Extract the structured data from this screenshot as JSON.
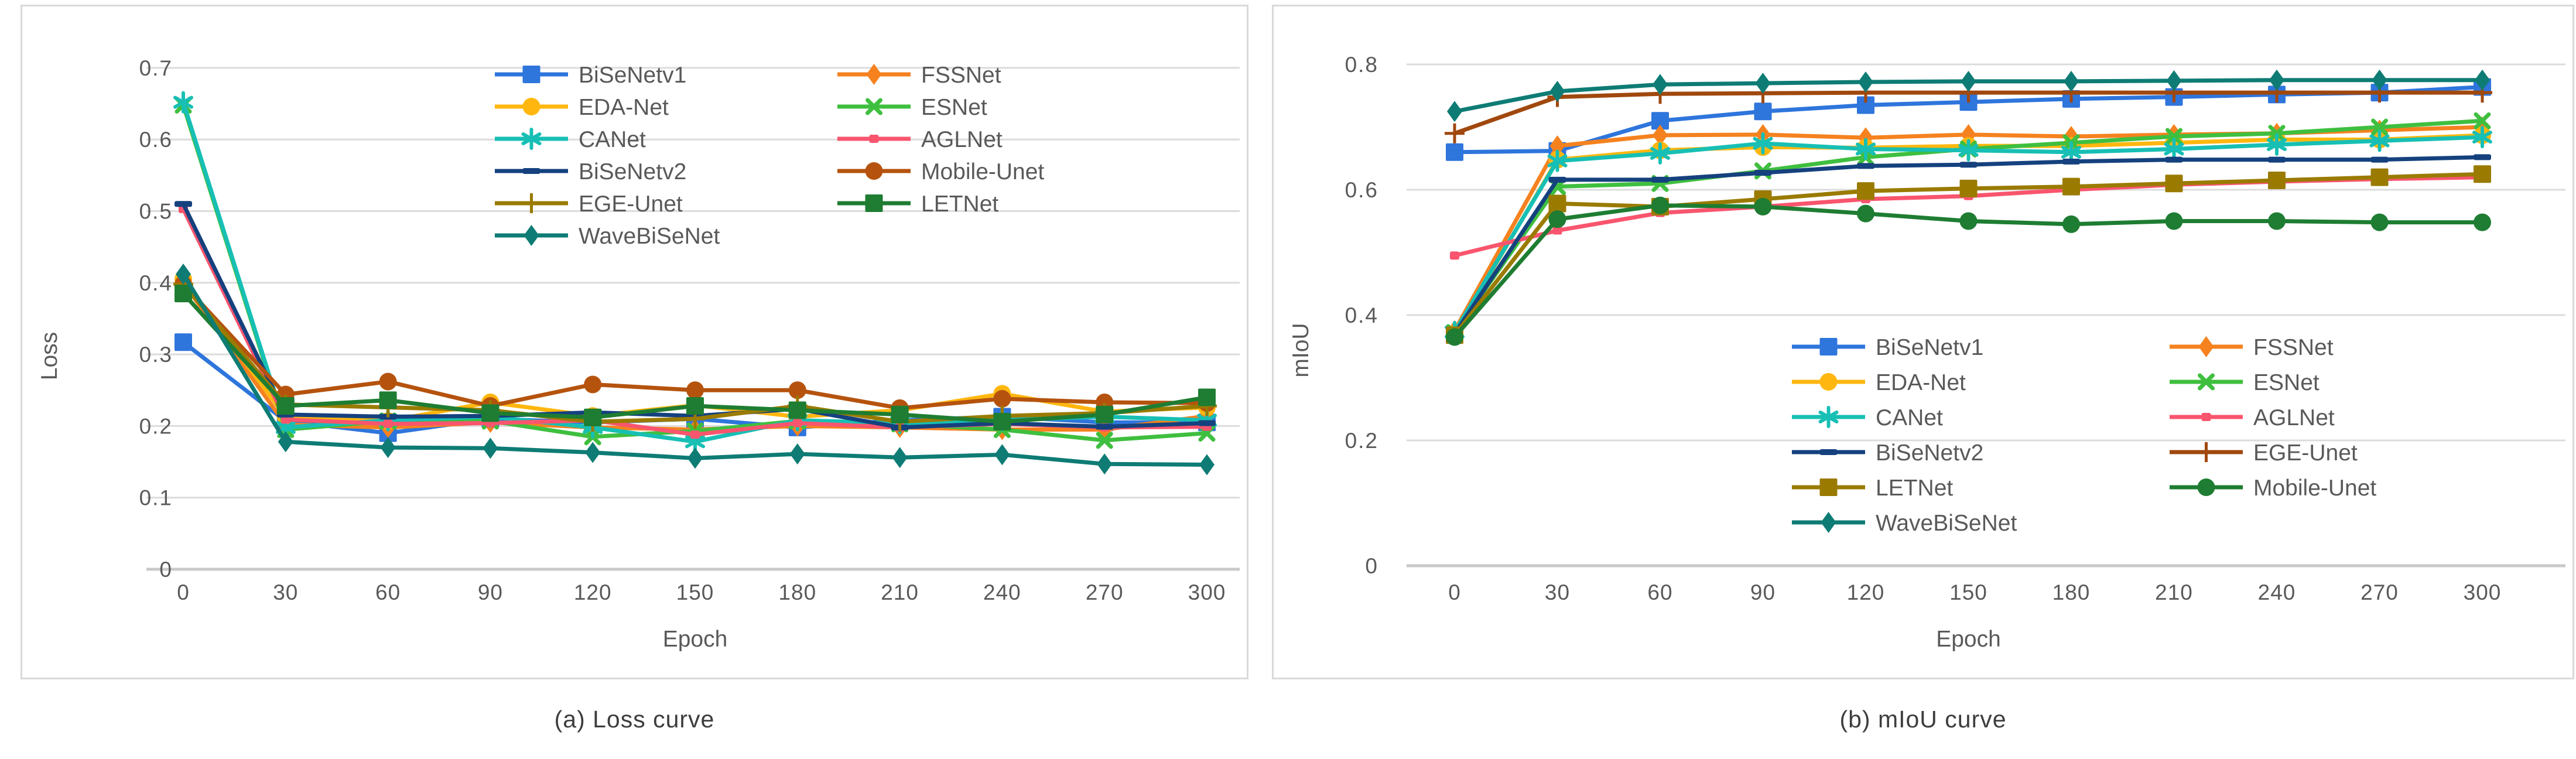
{
  "figure": {
    "background": "#ffffff",
    "text_color": "#595959",
    "grid_color": "#dcdcdc",
    "axis_line_color": "#c8c8c8",
    "panel_border_color": "#d9d9d9"
  },
  "chart_data": [
    {
      "id": "loss",
      "type": "line",
      "caption": "(a) Loss curve",
      "xlabel": "Epoch",
      "ylabel": "Loss",
      "x": [
        0,
        30,
        60,
        90,
        120,
        150,
        180,
        210,
        240,
        270,
        300
      ],
      "x_tick_labels": [
        "0",
        "30",
        "60",
        "90",
        "120",
        "150",
        "180",
        "210",
        "240",
        "270",
        "300"
      ],
      "y_ticks": [
        0,
        0.1,
        0.2,
        0.3,
        0.4,
        0.5,
        0.6,
        0.7
      ],
      "y_tick_labels": [
        "0",
        "0.1",
        "0.2",
        "0.3",
        "0.4",
        "0.5",
        "0.6",
        "0.7"
      ],
      "ylim": [
        0,
        0.7
      ],
      "grid": true,
      "legend_position": "top-center-inside",
      "legend_columns": [
        [
          "BiSeNetv1",
          "EDA-Net",
          "CANet",
          "BiSeNetv2",
          "EGE-Unet",
          "WaveBiSeNet"
        ],
        [
          "FSSNet",
          "ESNet",
          "AGLNet",
          "Mobile-Unet",
          "LETNet"
        ]
      ],
      "series": [
        {
          "name": "BiSeNetv1",
          "color": "#2e75dc",
          "marker": "square",
          "values": [
            0.317,
            0.207,
            0.19,
            0.21,
            0.205,
            0.21,
            0.198,
            0.208,
            0.213,
            0.205,
            0.205
          ]
        },
        {
          "name": "FSSNet",
          "color": "#f5821f",
          "marker": "diamond",
          "values": [
            0.4,
            0.202,
            0.198,
            0.205,
            0.198,
            0.195,
            0.2,
            0.198,
            0.195,
            0.195,
            0.214
          ]
        },
        {
          "name": "EDA-Net",
          "color": "#ffb70f",
          "marker": "circle",
          "values": [
            0.405,
            0.213,
            0.207,
            0.233,
            0.214,
            0.229,
            0.213,
            0.222,
            0.245,
            0.22,
            0.226
          ]
        },
        {
          "name": "ESNet",
          "color": "#3fbf3f",
          "marker": "x",
          "values": [
            0.648,
            0.195,
            0.207,
            0.207,
            0.185,
            0.193,
            0.207,
            0.203,
            0.195,
            0.18,
            0.19
          ]
        },
        {
          "name": "CANet",
          "color": "#17bfb4",
          "marker": "asterisk",
          "values": [
            0.652,
            0.198,
            0.208,
            0.213,
            0.198,
            0.178,
            0.208,
            0.204,
            0.208,
            0.213,
            0.208
          ]
        },
        {
          "name": "AGLNet",
          "color": "#f9556e",
          "marker": "small-square",
          "values": [
            0.503,
            0.209,
            0.203,
            0.204,
            0.208,
            0.188,
            0.204,
            0.198,
            0.203,
            0.198,
            0.199
          ]
        },
        {
          "name": "BiSeNetv2",
          "color": "#15417e",
          "marker": "dash",
          "values": [
            0.51,
            0.216,
            0.213,
            0.214,
            0.219,
            0.214,
            0.224,
            0.198,
            0.204,
            0.199,
            0.204
          ]
        },
        {
          "name": "Mobile-Unet",
          "color": "#b5530e",
          "marker": "circle",
          "values": [
            0.398,
            0.244,
            0.262,
            0.228,
            0.258,
            0.25,
            0.25,
            0.225,
            0.238,
            0.233,
            0.232
          ]
        },
        {
          "name": "EGE-Unet",
          "color": "#9a7b00",
          "marker": "plus",
          "values": [
            0.398,
            0.23,
            0.226,
            0.222,
            0.206,
            0.21,
            0.228,
            0.206,
            0.214,
            0.218,
            0.228
          ]
        },
        {
          "name": "LETNet",
          "color": "#1e7d32",
          "marker": "square",
          "values": [
            0.385,
            0.228,
            0.236,
            0.218,
            0.212,
            0.228,
            0.222,
            0.216,
            0.206,
            0.216,
            0.24
          ]
        },
        {
          "name": "WaveBiSeNet",
          "color": "#0e7c74",
          "marker": "diamond",
          "values": [
            0.412,
            0.178,
            0.17,
            0.169,
            0.163,
            0.155,
            0.161,
            0.156,
            0.16,
            0.147,
            0.146
          ]
        }
      ]
    },
    {
      "id": "miou",
      "type": "line",
      "caption": "(b) mIoU curve",
      "xlabel": "Epoch",
      "ylabel": "mIoU",
      "x": [
        0,
        30,
        60,
        90,
        120,
        150,
        180,
        210,
        240,
        270,
        300
      ],
      "x_tick_labels": [
        "0",
        "30",
        "60",
        "90",
        "120",
        "150",
        "180",
        "210",
        "240",
        "270",
        "300"
      ],
      "y_ticks": [
        0,
        0.2,
        0.4,
        0.6,
        0.8
      ],
      "y_tick_labels": [
        "0",
        "0.2",
        "0.4",
        "0.6",
        "0.8"
      ],
      "ylim": [
        0,
        0.8
      ],
      "grid": true,
      "legend_position": "bottom-right-inside",
      "legend_columns": [
        [
          "BiSeNetv1",
          "EDA-Net",
          "CANet",
          "BiSeNetv2",
          "LETNet",
          "WaveBiSeNet"
        ],
        [
          "FSSNet",
          "ESNet",
          "AGLNet",
          "EGE-Unet",
          "Mobile-Unet"
        ]
      ],
      "series": [
        {
          "name": "BiSeNetv1",
          "color": "#2e75dc",
          "marker": "square",
          "values": [
            0.66,
            0.662,
            0.71,
            0.725,
            0.735,
            0.74,
            0.745,
            0.748,
            0.752,
            0.755,
            0.764
          ]
        },
        {
          "name": "FSSNet",
          "color": "#f5821f",
          "marker": "diamond",
          "values": [
            0.375,
            0.67,
            0.687,
            0.688,
            0.683,
            0.688,
            0.685,
            0.688,
            0.69,
            0.695,
            0.7
          ]
        },
        {
          "name": "EDA-Net",
          "color": "#ffb70f",
          "marker": "circle",
          "values": [
            0.37,
            0.648,
            0.663,
            0.668,
            0.667,
            0.67,
            0.67,
            0.675,
            0.68,
            0.68,
            0.687
          ]
        },
        {
          "name": "ESNet",
          "color": "#3fbf3f",
          "marker": "x",
          "values": [
            0.372,
            0.605,
            0.61,
            0.63,
            0.652,
            0.665,
            0.675,
            0.685,
            0.69,
            0.7,
            0.71
          ]
        },
        {
          "name": "CANet",
          "color": "#17bfb4",
          "marker": "asterisk",
          "values": [
            0.373,
            0.646,
            0.658,
            0.674,
            0.665,
            0.663,
            0.66,
            0.665,
            0.672,
            0.678,
            0.684
          ]
        },
        {
          "name": "AGLNet",
          "color": "#f9556e",
          "marker": "small-square",
          "values": [
            0.495,
            0.535,
            0.563,
            0.573,
            0.585,
            0.59,
            0.6,
            0.608,
            0.613,
            0.617,
            0.62
          ]
        },
        {
          "name": "BiSeNetv2",
          "color": "#15417e",
          "marker": "dash",
          "values": [
            0.37,
            0.616,
            0.616,
            0.627,
            0.638,
            0.64,
            0.645,
            0.648,
            0.648,
            0.648,
            0.652
          ]
        },
        {
          "name": "EGE-Unet",
          "color": "#a0480e",
          "marker": "plus",
          "values": [
            0.69,
            0.748,
            0.753,
            0.754,
            0.755,
            0.755,
            0.755,
            0.755,
            0.755,
            0.755,
            0.755
          ]
        },
        {
          "name": "LETNet",
          "color": "#9a7b00",
          "marker": "square",
          "values": [
            0.368,
            0.578,
            0.573,
            0.585,
            0.598,
            0.602,
            0.605,
            0.61,
            0.615,
            0.62,
            0.625
          ]
        },
        {
          "name": "Mobile-Unet",
          "color": "#1e7d32",
          "marker": "circle",
          "values": [
            0.365,
            0.553,
            0.575,
            0.573,
            0.562,
            0.55,
            0.545,
            0.55,
            0.55,
            0.548,
            0.548
          ]
        },
        {
          "name": "WaveBiSeNet",
          "color": "#0e7c74",
          "marker": "diamond",
          "values": [
            0.725,
            0.757,
            0.768,
            0.77,
            0.772,
            0.773,
            0.773,
            0.774,
            0.775,
            0.775,
            0.775
          ]
        }
      ]
    }
  ]
}
